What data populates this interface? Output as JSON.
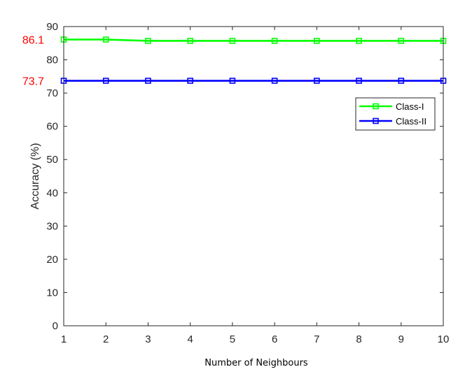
{
  "chart_data": {
    "type": "line",
    "xlabel": "Number of Neighbours",
    "ylabel": "Accuracy (%)",
    "xlim": [
      1,
      10
    ],
    "ylim": [
      0,
      90
    ],
    "x_ticks": [
      1,
      2,
      3,
      4,
      5,
      6,
      7,
      8,
      9,
      10
    ],
    "y_ticks": [
      0,
      10,
      20,
      30,
      40,
      50,
      60,
      70,
      80,
      90
    ],
    "grid": false,
    "legend_position": "top-right",
    "x": [
      1,
      2,
      3,
      4,
      5,
      6,
      7,
      8,
      9,
      10
    ],
    "series": [
      {
        "name": "Class-I",
        "color": "#00ff00",
        "marker": "square",
        "values": [
          86.1,
          86.1,
          85.7,
          85.7,
          85.7,
          85.7,
          85.7,
          85.7,
          85.7,
          85.7
        ]
      },
      {
        "name": "Class-II",
        "color": "#0000ff",
        "marker": "square",
        "values": [
          73.7,
          73.7,
          73.7,
          73.7,
          73.7,
          73.7,
          73.7,
          73.7,
          73.7,
          73.7
        ]
      }
    ],
    "annotations": [
      {
        "text": "86.1",
        "y": 86.1,
        "color": "#ff0000"
      },
      {
        "text": "73.7",
        "y": 73.7,
        "color": "#ff0000"
      }
    ]
  }
}
